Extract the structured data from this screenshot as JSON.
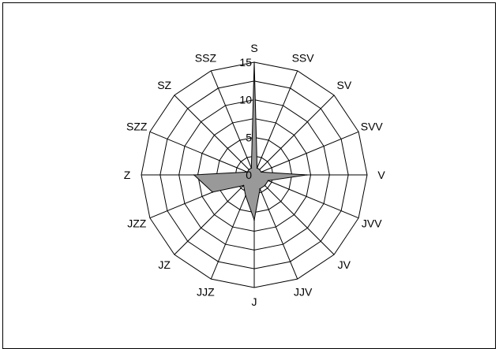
{
  "chart_data": {
    "type": "radar",
    "categories": [
      "S",
      "SSV",
      "SV",
      "SVV",
      "V",
      "JVV",
      "JV",
      "JJV",
      "J",
      "JJZ",
      "JZ",
      "JZZ",
      "Z",
      "SZZ",
      "SZ",
      "SSZ"
    ],
    "rlim": [
      0,
      15
    ],
    "ticks": [
      "0",
      "5",
      "10",
      "15"
    ],
    "tick_values": [
      0,
      5,
      10,
      15
    ],
    "grid": true,
    "series": [
      {
        "values": [
          15,
          1,
          1,
          1,
          7,
          2,
          2,
          2,
          6,
          3,
          2,
          6,
          8,
          1,
          1,
          1
        ],
        "color": "#999999"
      }
    ]
  }
}
